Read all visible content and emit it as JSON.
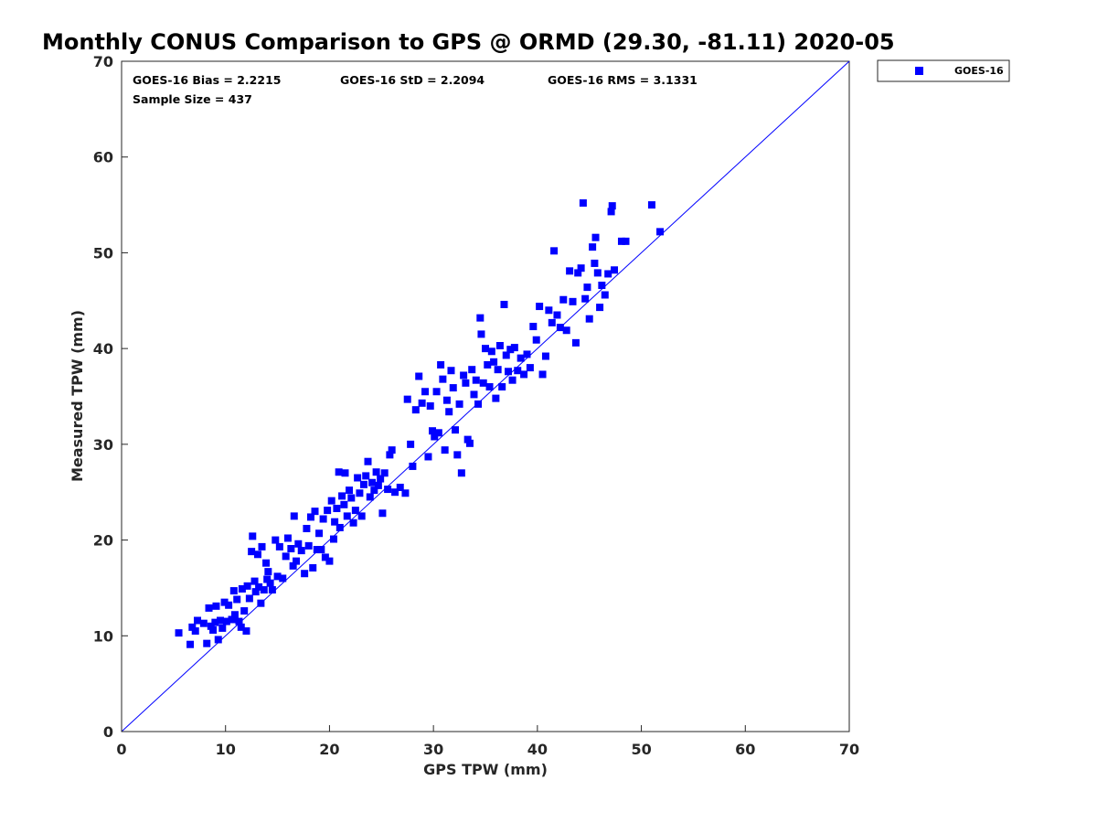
{
  "chart_data": {
    "type": "scatter",
    "title": "Monthly CONUS Comparison to GPS @ ORMD (29.30, -81.11) 2020-05",
    "xlabel": "GPS TPW (mm)",
    "ylabel": "Measured TPW (mm)",
    "xlim": [
      0,
      70
    ],
    "ylim": [
      0,
      70
    ],
    "xticks": [
      "0",
      "10",
      "20",
      "30",
      "40",
      "50",
      "60",
      "70"
    ],
    "yticks": [
      "0",
      "10",
      "20",
      "30",
      "40",
      "50",
      "60",
      "70"
    ],
    "grid": false,
    "legend": {
      "position": "top-right-outside",
      "entries": [
        "GOES-16"
      ]
    },
    "stats": {
      "bias": "GOES-16 Bias = 2.2215",
      "std": "GOES-16 StD = 2.2094",
      "rms": "GOES-16 RMS = 3.1331",
      "sample": "Sample Size = 437"
    },
    "reference_line": {
      "name": "one-to-one",
      "from": [
        0,
        0
      ],
      "to": [
        70,
        70
      ]
    },
    "series": [
      {
        "name": "GOES-16",
        "color": "#0000ff",
        "marker": "square",
        "points": [
          [
            5.5,
            10.3
          ],
          [
            6.6,
            9.1
          ],
          [
            6.8,
            10.9
          ],
          [
            7.1,
            10.5
          ],
          [
            7.3,
            11.6
          ],
          [
            7.9,
            11.3
          ],
          [
            8.2,
            9.2
          ],
          [
            8.4,
            12.9
          ],
          [
            8.6,
            11.0
          ],
          [
            8.8,
            10.6
          ],
          [
            9.0,
            11.4
          ],
          [
            9.1,
            13.1
          ],
          [
            9.3,
            9.6
          ],
          [
            9.5,
            11.6
          ],
          [
            9.7,
            10.8
          ],
          [
            9.9,
            13.5
          ],
          [
            10.1,
            11.5
          ],
          [
            10.3,
            13.2
          ],
          [
            10.6,
            11.7
          ],
          [
            10.8,
            14.7
          ],
          [
            10.9,
            12.2
          ],
          [
            11.1,
            13.8
          ],
          [
            11.3,
            11.5
          ],
          [
            11.5,
            10.9
          ],
          [
            11.6,
            14.9
          ],
          [
            11.8,
            12.6
          ],
          [
            12.0,
            10.5
          ],
          [
            12.1,
            15.2
          ],
          [
            12.3,
            13.9
          ],
          [
            12.5,
            18.8
          ],
          [
            12.6,
            20.4
          ],
          [
            12.8,
            15.7
          ],
          [
            12.9,
            14.6
          ],
          [
            13.1,
            18.5
          ],
          [
            13.2,
            15.1
          ],
          [
            13.4,
            13.4
          ],
          [
            13.5,
            19.3
          ],
          [
            13.7,
            14.8
          ],
          [
            13.9,
            17.6
          ],
          [
            14.0,
            15.9
          ],
          [
            14.1,
            16.7
          ],
          [
            14.3,
            15.5
          ],
          [
            14.5,
            14.8
          ],
          [
            14.8,
            20.0
          ],
          [
            15.0,
            16.2
          ],
          [
            15.2,
            19.3
          ],
          [
            15.5,
            16.0
          ],
          [
            15.8,
            18.3
          ],
          [
            16.0,
            20.2
          ],
          [
            16.3,
            19.1
          ],
          [
            16.5,
            17.3
          ],
          [
            16.6,
            22.5
          ],
          [
            16.8,
            17.8
          ],
          [
            17.0,
            19.6
          ],
          [
            17.3,
            18.9
          ],
          [
            17.6,
            16.5
          ],
          [
            17.8,
            21.2
          ],
          [
            18.0,
            19.4
          ],
          [
            18.2,
            22.4
          ],
          [
            18.4,
            17.1
          ],
          [
            18.6,
            23.0
          ],
          [
            18.8,
            19.0
          ],
          [
            19.0,
            20.7
          ],
          [
            19.2,
            19.0
          ],
          [
            19.4,
            22.2
          ],
          [
            19.6,
            18.2
          ],
          [
            19.8,
            23.1
          ],
          [
            20.0,
            17.8
          ],
          [
            20.2,
            24.1
          ],
          [
            20.4,
            20.1
          ],
          [
            20.5,
            21.9
          ],
          [
            20.7,
            23.3
          ],
          [
            20.9,
            27.1
          ],
          [
            21.0,
            21.3
          ],
          [
            21.2,
            24.6
          ],
          [
            21.4,
            23.7
          ],
          [
            21.5,
            27.0
          ],
          [
            21.7,
            22.5
          ],
          [
            21.9,
            25.2
          ],
          [
            22.1,
            24.4
          ],
          [
            22.3,
            21.8
          ],
          [
            22.5,
            23.1
          ],
          [
            22.7,
            26.5
          ],
          [
            22.9,
            24.9
          ],
          [
            23.1,
            22.5
          ],
          [
            23.3,
            25.8
          ],
          [
            23.5,
            26.7
          ],
          [
            23.7,
            28.2
          ],
          [
            23.9,
            24.5
          ],
          [
            24.1,
            26.0
          ],
          [
            24.3,
            25.2
          ],
          [
            24.5,
            27.1
          ],
          [
            24.7,
            25.7
          ],
          [
            24.9,
            26.4
          ],
          [
            25.1,
            22.8
          ],
          [
            25.3,
            27.0
          ],
          [
            25.6,
            25.3
          ],
          [
            25.8,
            28.9
          ],
          [
            26.0,
            29.4
          ],
          [
            26.3,
            25.0
          ],
          [
            26.8,
            25.5
          ],
          [
            27.3,
            24.9
          ],
          [
            27.5,
            34.7
          ],
          [
            27.8,
            30.0
          ],
          [
            28.0,
            27.7
          ],
          [
            28.3,
            33.6
          ],
          [
            28.6,
            37.1
          ],
          [
            28.9,
            34.3
          ],
          [
            29.2,
            35.5
          ],
          [
            29.5,
            28.7
          ],
          [
            29.7,
            34.0
          ],
          [
            29.9,
            31.4
          ],
          [
            30.1,
            30.8
          ],
          [
            30.3,
            35.5
          ],
          [
            30.5,
            31.2
          ],
          [
            30.7,
            38.3
          ],
          [
            30.9,
            36.8
          ],
          [
            31.1,
            29.4
          ],
          [
            31.3,
            34.6
          ],
          [
            31.5,
            33.4
          ],
          [
            31.7,
            37.7
          ],
          [
            31.9,
            35.9
          ],
          [
            32.1,
            31.5
          ],
          [
            32.3,
            28.9
          ],
          [
            32.5,
            34.2
          ],
          [
            32.7,
            27.0
          ],
          [
            32.9,
            37.2
          ],
          [
            33.1,
            36.4
          ],
          [
            33.3,
            30.5
          ],
          [
            33.5,
            30.1
          ],
          [
            33.7,
            37.8
          ],
          [
            33.9,
            35.2
          ],
          [
            34.1,
            36.7
          ],
          [
            34.3,
            34.2
          ],
          [
            34.5,
            43.2
          ],
          [
            34.6,
            41.5
          ],
          [
            34.8,
            36.4
          ],
          [
            35.0,
            40.0
          ],
          [
            35.2,
            38.3
          ],
          [
            35.4,
            36.0
          ],
          [
            35.6,
            39.7
          ],
          [
            35.8,
            38.6
          ],
          [
            36.0,
            34.8
          ],
          [
            36.2,
            37.8
          ],
          [
            36.4,
            40.3
          ],
          [
            36.6,
            36.0
          ],
          [
            36.8,
            44.6
          ],
          [
            37.0,
            39.3
          ],
          [
            37.2,
            37.6
          ],
          [
            37.4,
            39.9
          ],
          [
            37.6,
            36.7
          ],
          [
            37.8,
            40.1
          ],
          [
            38.1,
            37.7
          ],
          [
            38.4,
            39.0
          ],
          [
            38.7,
            37.3
          ],
          [
            39.0,
            39.4
          ],
          [
            39.3,
            38.0
          ],
          [
            39.6,
            42.3
          ],
          [
            39.9,
            40.9
          ],
          [
            40.2,
            44.4
          ],
          [
            40.5,
            37.3
          ],
          [
            40.8,
            39.2
          ],
          [
            41.1,
            44.0
          ],
          [
            41.4,
            42.7
          ],
          [
            41.6,
            50.2
          ],
          [
            41.9,
            43.5
          ],
          [
            42.2,
            42.2
          ],
          [
            42.5,
            45.1
          ],
          [
            42.8,
            41.9
          ],
          [
            43.1,
            48.1
          ],
          [
            43.4,
            44.9
          ],
          [
            43.7,
            40.6
          ],
          [
            43.9,
            47.9
          ],
          [
            44.2,
            48.4
          ],
          [
            44.4,
            55.2
          ],
          [
            44.6,
            45.2
          ],
          [
            44.8,
            46.4
          ],
          [
            45.0,
            43.1
          ],
          [
            45.3,
            50.6
          ],
          [
            45.5,
            48.9
          ],
          [
            45.6,
            51.6
          ],
          [
            45.8,
            47.9
          ],
          [
            46.0,
            44.3
          ],
          [
            46.2,
            46.6
          ],
          [
            46.5,
            45.6
          ],
          [
            46.8,
            47.8
          ],
          [
            47.1,
            54.3
          ],
          [
            47.2,
            54.9
          ],
          [
            47.4,
            48.2
          ],
          [
            48.1,
            51.2
          ],
          [
            48.5,
            51.2
          ],
          [
            51.0,
            55.0
          ],
          [
            51.8,
            52.2
          ]
        ]
      }
    ]
  }
}
